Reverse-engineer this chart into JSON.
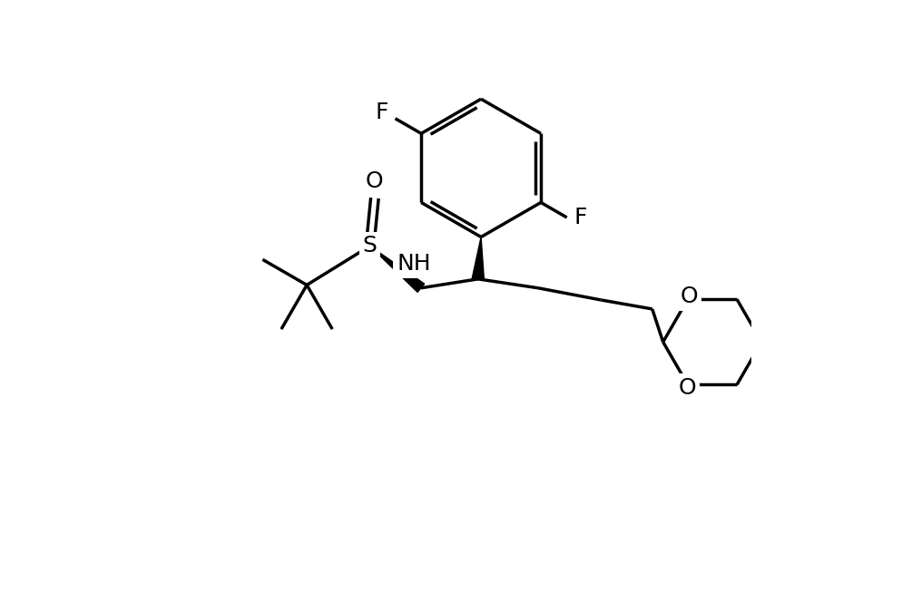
{
  "background_color": "#ffffff",
  "line_color": "#000000",
  "line_width": 2.5,
  "font_size_label": 18,
  "xlim": [
    0,
    10
  ],
  "ylim": [
    0,
    10
  ]
}
